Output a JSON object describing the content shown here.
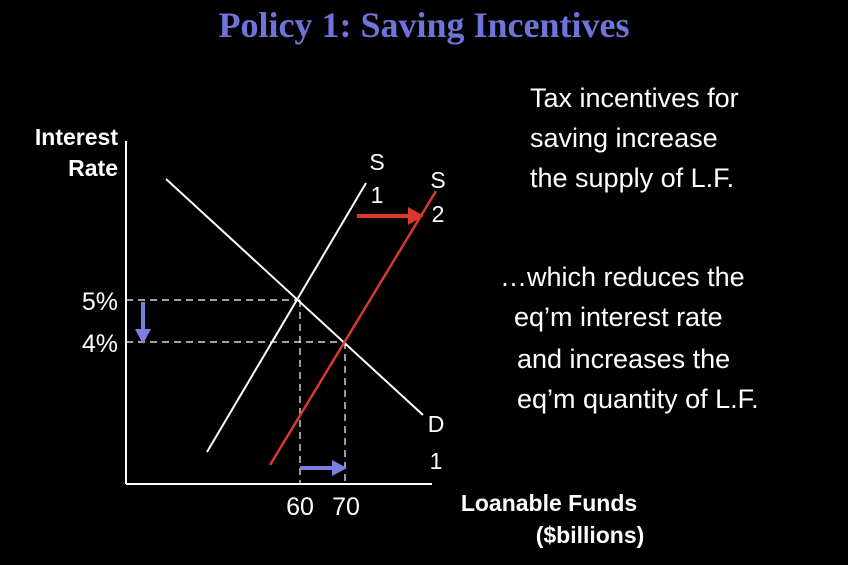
{
  "title": "Policy 1:  Saving Incentives",
  "notes": {
    "n1": "Tax incentives for",
    "n2": "saving increase",
    "n3": "the supply of L.F.",
    "n4": "…which reduces the",
    "n5": "eq’m interest rate",
    "n6": "and increases the",
    "n7": "eq’m quantity of L.F."
  },
  "axis": {
    "y1": "Interest",
    "y2": "Rate",
    "x1": "Loanable Funds",
    "x2": "($billions)"
  },
  "ticks": {
    "r_old": "5%",
    "r_new": "4%",
    "q_old": "60",
    "q_new": "70"
  },
  "curves": {
    "s1a": "S",
    "s1b": "1",
    "s2a": "S",
    "s2b": "2",
    "d1a": "D",
    "d1b": "1"
  },
  "colors": {
    "title": "#6f74d8",
    "s2": "#d93a2b",
    "arrow": "#7b7fe0",
    "line": "#ffffff"
  }
}
